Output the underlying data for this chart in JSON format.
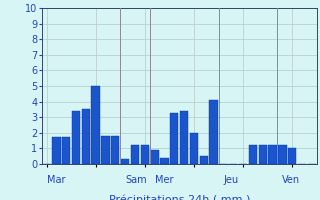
{
  "title": "",
  "background_color": "#d8f5f5",
  "bar_color_face": "#1a55cc",
  "bar_color_edge": "#0033aa",
  "grid_color": "#b8c8c8",
  "vline_color": "#888899",
  "text_color": "#2244bb",
  "ylim": [
    0,
    10
  ],
  "yticks": [
    0,
    1,
    2,
    3,
    4,
    5,
    6,
    7,
    8,
    9,
    10
  ],
  "day_labels": [
    "Mar",
    "Sam",
    "Mer",
    "Jeu",
    "Ven"
  ],
  "day_positions_x": [
    0,
    8,
    11,
    18,
    24
  ],
  "values": [
    0,
    1.7,
    1.7,
    3.4,
    3.5,
    5.0,
    1.8,
    1.8,
    0.35,
    1.2,
    1.2,
    0.9,
    0.4,
    3.3,
    3.4,
    2.0,
    0.5,
    4.1,
    0,
    0,
    0,
    1.2,
    1.2,
    1.2,
    1.2,
    1.0,
    0,
    0
  ],
  "n_bars": 28,
  "vline_positions": [
    7.5,
    10.5,
    17.5,
    23.5
  ],
  "xlabel_fontsize": 8,
  "tick_fontsize": 7,
  "day_label_fontsize": 7
}
